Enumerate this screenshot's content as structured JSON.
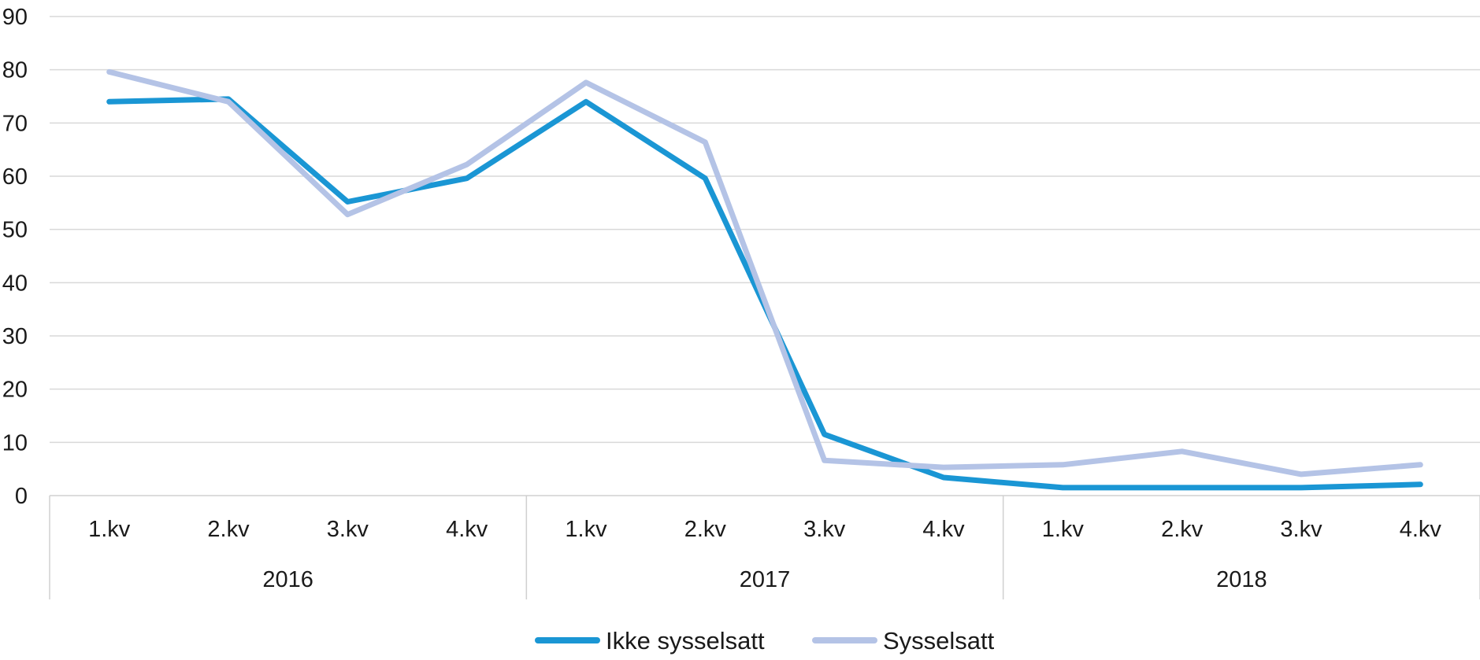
{
  "chart_data": {
    "type": "line",
    "title": "",
    "xlabel": "",
    "ylabel": "",
    "ylim": [
      0,
      90
    ],
    "yticks": [
      0,
      10,
      20,
      30,
      40,
      50,
      60,
      70,
      80,
      90
    ],
    "grid": true,
    "legend_position": "bottom-center",
    "categories": [
      "1.kv",
      "2.kv",
      "3.kv",
      "4.kv",
      "1.kv",
      "2.kv",
      "3.kv",
      "4.kv",
      "1.kv",
      "2.kv",
      "3.kv",
      "4.kv"
    ],
    "groups": [
      {
        "label": "2016",
        "count": 4
      },
      {
        "label": "2017",
        "count": 4
      },
      {
        "label": "2018",
        "count": 4
      }
    ],
    "series": [
      {
        "name": "Ikke sysselsatt",
        "color": "#1a96d4",
        "values": [
          74,
          74.5,
          55.2,
          59.6,
          74,
          59.6,
          11.5,
          3.4,
          1.5,
          1.5,
          1.5,
          2.1
        ]
      },
      {
        "name": "Sysselsatt",
        "color": "#b4c3e6",
        "values": [
          79.6,
          74,
          52.8,
          62.2,
          77.6,
          66.4,
          6.6,
          5.3,
          5.8,
          8.3,
          4,
          5.8
        ]
      }
    ]
  }
}
